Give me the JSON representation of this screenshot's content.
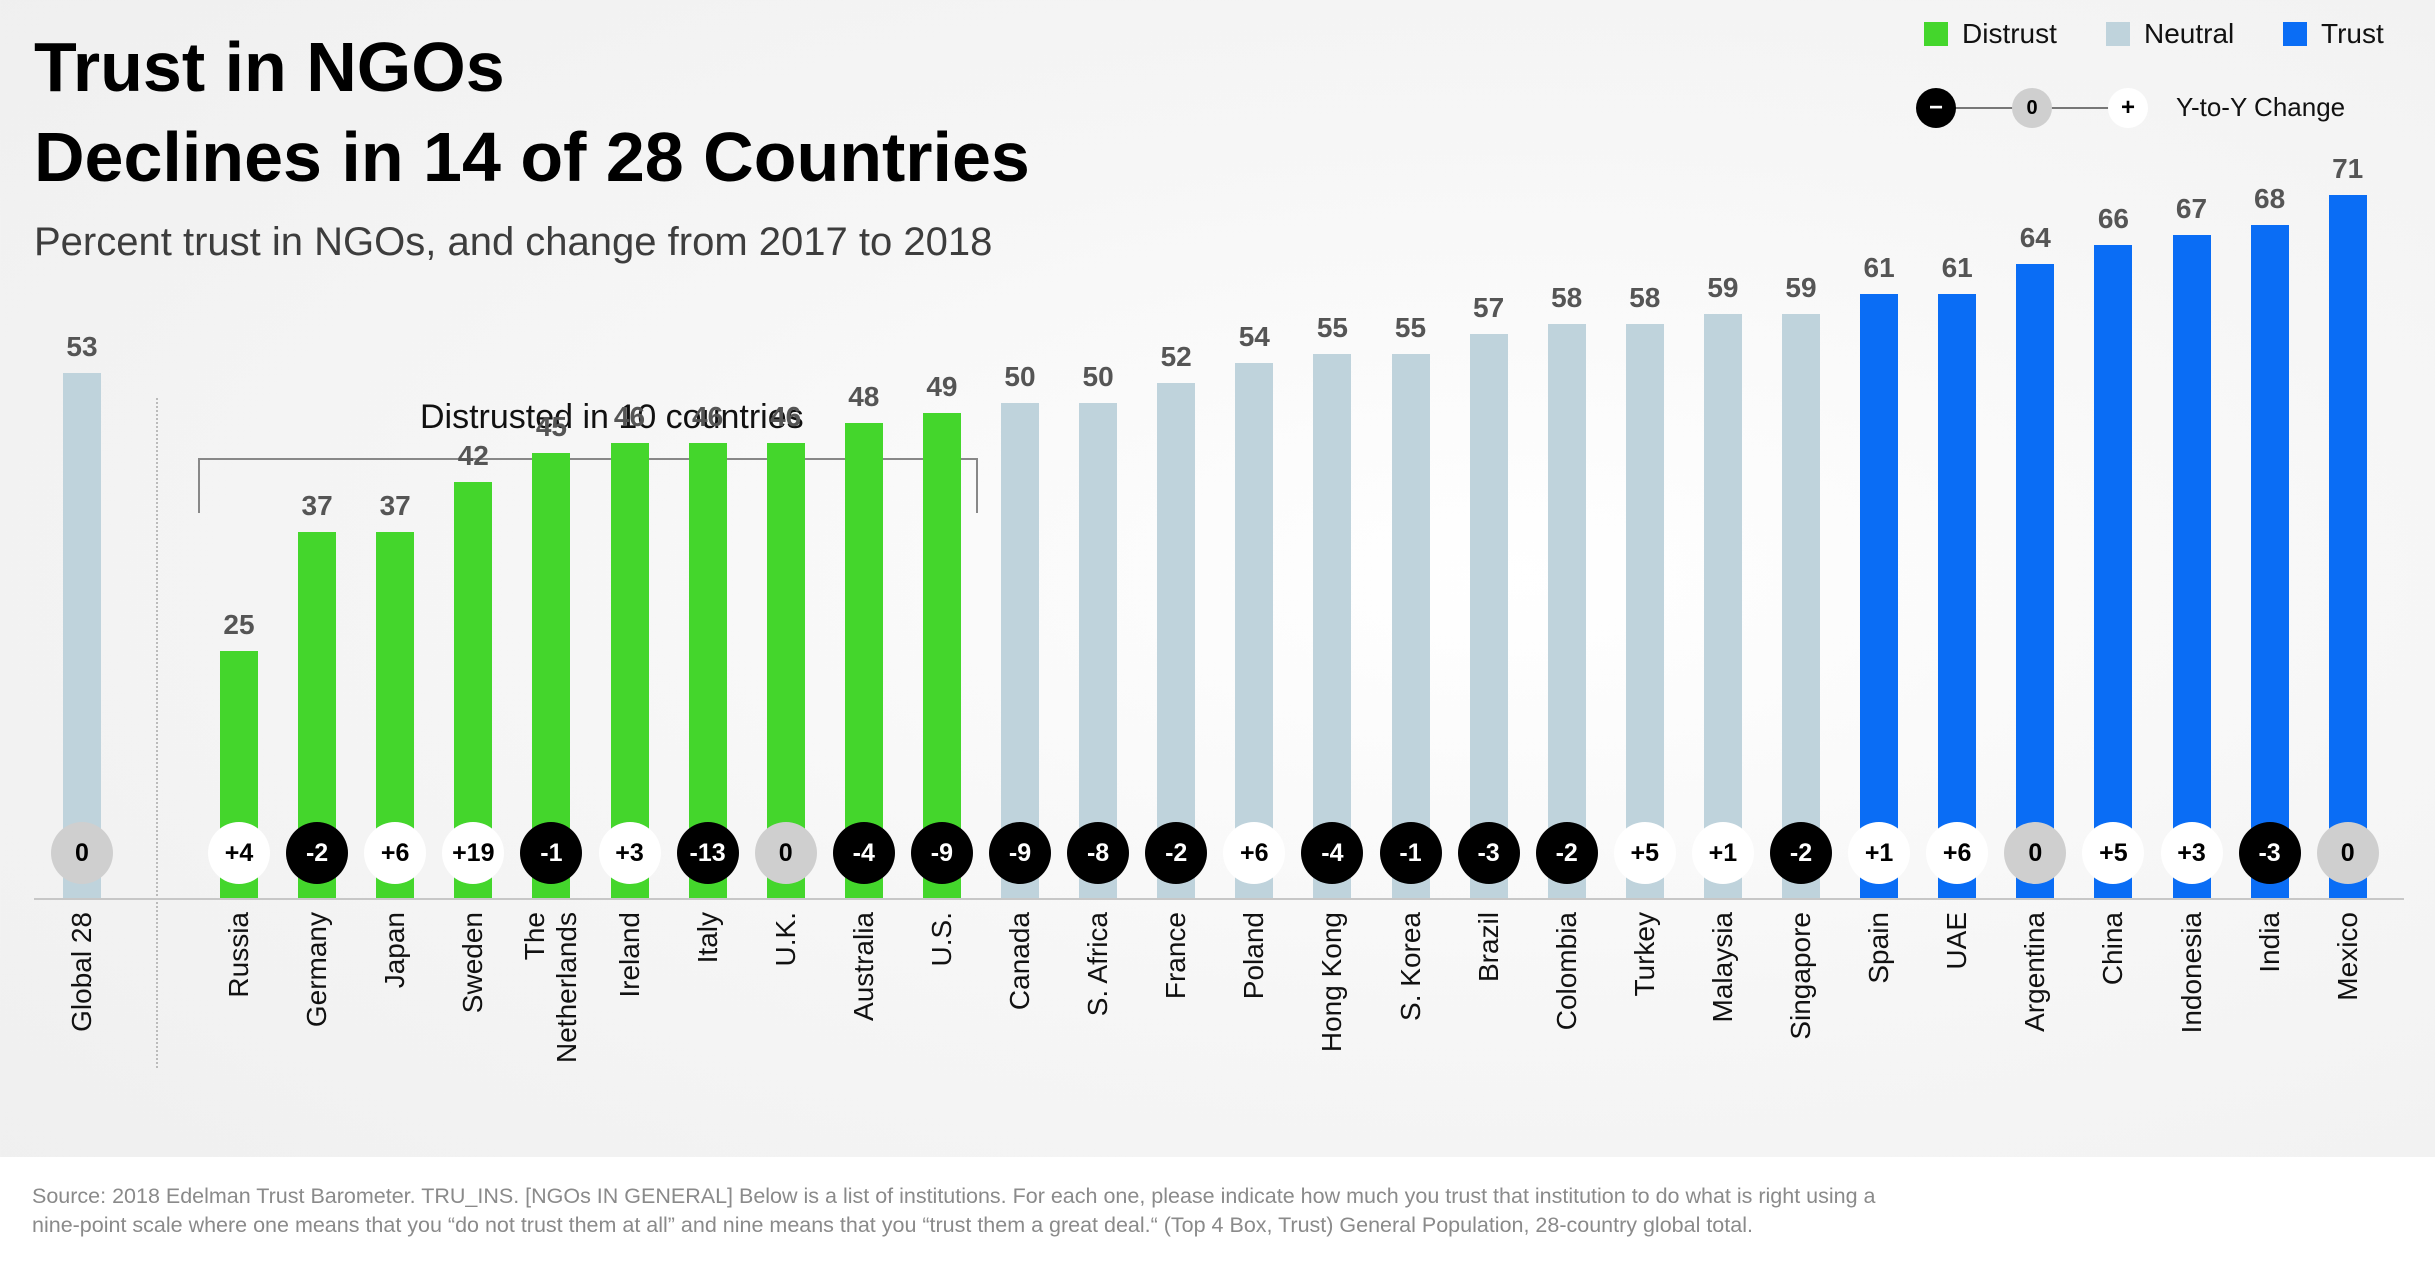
{
  "title": {
    "line1": "Trust in NGOs",
    "line2": "Declines in 14 of 28 Countries"
  },
  "subtitle": "Percent trust in NGOs, and change from 2017 to 2018",
  "legend": {
    "items": [
      {
        "label": "Distrust",
        "color": "#44d62c"
      },
      {
        "label": "Neutral",
        "color": "#bfd3dc"
      },
      {
        "label": "Trust",
        "color": "#0a6df5"
      }
    ],
    "yoy": {
      "minus": "−",
      "zero": "0",
      "plus": "+",
      "label": "Y-to-Y Change"
    }
  },
  "bracket_label": "Distrusted in 10  countries",
  "source": "Source: 2018 Edelman Trust Barometer. TRU_INS. [NGOs IN GENERAL] Below is a list of institutions. For each one, please indicate how much you trust that institution to do what is right using a nine-point scale where one means that you “do not trust them at all” and nine means that you “trust them a great deal.“ (Top 4 Box, Trust)  General Population, 28-country global total.",
  "chart_data": {
    "type": "bar",
    "title": "Trust in NGOs Declines in 14 of 28 Countries",
    "subtitle": "Percent trust in NGOs, and change from 2017 to 2018",
    "ylim": [
      0,
      100
    ],
    "categories": [
      {
        "name": "Global 28",
        "value": 53,
        "change": "0",
        "group": "Neutral"
      },
      {
        "name": "Russia",
        "value": 25,
        "change": "+4",
        "group": "Distrust"
      },
      {
        "name": "Germany",
        "value": 37,
        "change": "-2",
        "group": "Distrust"
      },
      {
        "name": "Japan",
        "value": 37,
        "change": "+6",
        "group": "Distrust"
      },
      {
        "name": "Sweden",
        "value": 42,
        "change": "+19",
        "group": "Distrust"
      },
      {
        "name": "The Netherlands",
        "lines": [
          "The",
          "Netherlands"
        ],
        "value": 45,
        "change": "-1",
        "group": "Distrust"
      },
      {
        "name": "Ireland",
        "value": 46,
        "change": "+3",
        "group": "Distrust"
      },
      {
        "name": "Italy",
        "value": 46,
        "change": "-13",
        "group": "Distrust"
      },
      {
        "name": "U.K.",
        "value": 46,
        "change": "0",
        "group": "Distrust"
      },
      {
        "name": "Australia",
        "value": 48,
        "change": "-4",
        "group": "Distrust"
      },
      {
        "name": "U.S.",
        "value": 49,
        "change": "-9",
        "group": "Distrust"
      },
      {
        "name": "Canada",
        "value": 50,
        "change": "-9",
        "group": "Neutral"
      },
      {
        "name": "S. Africa",
        "value": 50,
        "change": "-8",
        "group": "Neutral"
      },
      {
        "name": "France",
        "value": 52,
        "change": "-2",
        "group": "Neutral"
      },
      {
        "name": "Poland",
        "value": 54,
        "change": "+6",
        "group": "Neutral"
      },
      {
        "name": "Hong Kong",
        "value": 55,
        "change": "-4",
        "group": "Neutral"
      },
      {
        "name": "S. Korea",
        "value": 55,
        "change": "-1",
        "group": "Neutral"
      },
      {
        "name": "Brazil",
        "value": 57,
        "change": "-3",
        "group": "Neutral"
      },
      {
        "name": "Colombia",
        "value": 58,
        "change": "-2",
        "group": "Neutral"
      },
      {
        "name": "Turkey",
        "value": 58,
        "change": "+5",
        "group": "Neutral"
      },
      {
        "name": "Malaysia",
        "value": 59,
        "change": "+1",
        "group": "Neutral"
      },
      {
        "name": "Singapore",
        "value": 59,
        "change": "-2",
        "group": "Neutral"
      },
      {
        "name": "Spain",
        "value": 61,
        "change": "+1",
        "group": "Trust"
      },
      {
        "name": "UAE",
        "value": 61,
        "change": "+6",
        "group": "Trust"
      },
      {
        "name": "Argentina",
        "value": 64,
        "change": "0",
        "group": "Trust"
      },
      {
        "name": "China",
        "value": 66,
        "change": "+5",
        "group": "Trust"
      },
      {
        "name": "Indonesia",
        "value": 67,
        "change": "+3",
        "group": "Trust"
      },
      {
        "name": "India",
        "value": 68,
        "change": "-3",
        "group": "Trust"
      },
      {
        "name": "Mexico",
        "value": 71,
        "change": "0",
        "group": "Trust"
      }
    ]
  }
}
